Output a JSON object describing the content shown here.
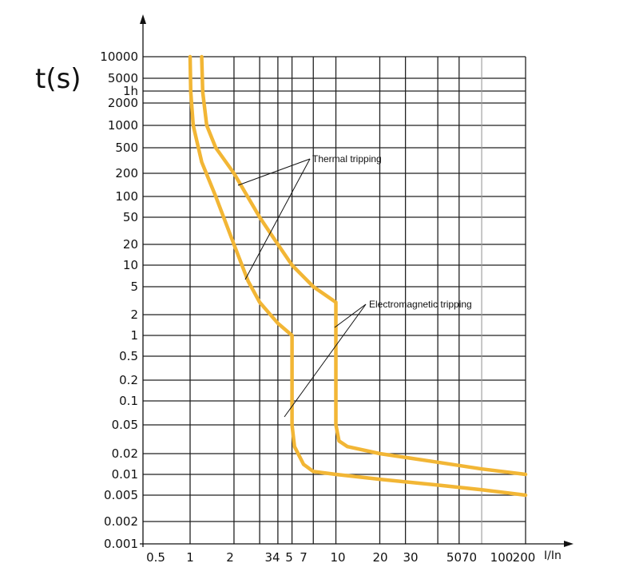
{
  "chart_data": {
    "type": "line",
    "ylabel": "t(s)",
    "xlabel": "I/In",
    "y_scale": "log",
    "x_scale": "log",
    "y_ticks": [
      "10000",
      "5000",
      "1h",
      "2000",
      "1000",
      "500",
      "200",
      "100",
      "50",
      "20",
      "10",
      "5",
      "2",
      "1",
      "0.5",
      "0.2",
      "0.1",
      "0.05",
      "0.02",
      "0.01",
      "0.005",
      "0.002",
      "0.001"
    ],
    "x_ticks": [
      "0.5",
      "1",
      "2",
      "3",
      "4",
      "5",
      "7",
      "10",
      "20",
      "30",
      "50",
      "70",
      "100",
      "200"
    ],
    "x_tick_text": [
      "0.5",
      "1",
      "2",
      "34",
      "5",
      "7",
      "10",
      "20",
      "30",
      "5070",
      "100",
      "200"
    ],
    "annotations": [
      "Thermal tripping",
      "Electromagnetic tripping"
    ],
    "grid": true,
    "curve_color": "#f2b635",
    "series": [
      {
        "role": "lower-boundary",
        "points": [
          [
            1,
            10000
          ],
          [
            1.01,
            3000
          ],
          [
            1.05,
            1000
          ],
          [
            1.2,
            300
          ],
          [
            1.5,
            100
          ],
          [
            2,
            20
          ],
          [
            2.5,
            6
          ],
          [
            3,
            3
          ],
          [
            4,
            1.5
          ],
          [
            5,
            1
          ],
          [
            5,
            0.05
          ],
          [
            5.2,
            0.025
          ],
          [
            6,
            0.014
          ],
          [
            7,
            0.011
          ],
          [
            10,
            0.01
          ],
          [
            20,
            0.0085
          ],
          [
            50,
            0.007
          ],
          [
            100,
            0.006
          ],
          [
            200,
            0.005
          ]
        ]
      },
      {
        "role": "upper-boundary",
        "points": [
          [
            1.2,
            10000
          ],
          [
            1.22,
            3000
          ],
          [
            1.3,
            1000
          ],
          [
            1.5,
            500
          ],
          [
            2,
            200
          ],
          [
            3,
            50
          ],
          [
            4,
            20
          ],
          [
            5,
            10
          ],
          [
            7,
            5
          ],
          [
            10,
            3
          ],
          [
            10,
            0.05
          ],
          [
            10.5,
            0.03
          ],
          [
            12,
            0.025
          ],
          [
            20,
            0.02
          ],
          [
            50,
            0.015
          ],
          [
            100,
            0.012
          ],
          [
            200,
            0.01
          ]
        ]
      }
    ]
  }
}
